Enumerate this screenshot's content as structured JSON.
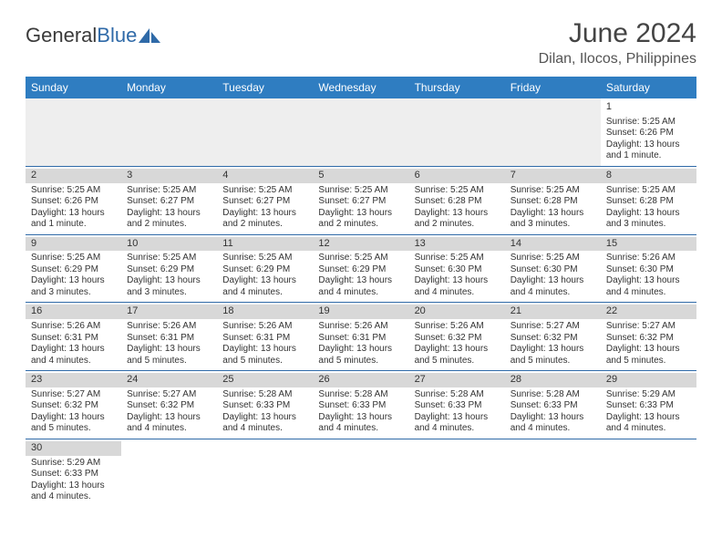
{
  "logo": {
    "text1": "General",
    "text2": "Blue"
  },
  "title": "June 2024",
  "location": "Dilan, Ilocos, Philippines",
  "colors": {
    "header_bg": "#2f7dc1",
    "header_text": "#ffffff",
    "row_divider": "#2f6aa8",
    "daynum_bg": "#d8d8d8",
    "empty_bg": "#eeeeee",
    "logo_blue": "#2f6aa8",
    "text": "#333333"
  },
  "day_headers": [
    "Sunday",
    "Monday",
    "Tuesday",
    "Wednesday",
    "Thursday",
    "Friday",
    "Saturday"
  ],
  "weeks": [
    [
      null,
      null,
      null,
      null,
      null,
      null,
      {
        "n": "1",
        "sr": "Sunrise: 5:25 AM",
        "ss": "Sunset: 6:26 PM",
        "d1": "Daylight: 13 hours",
        "d2": "and 1 minute."
      }
    ],
    [
      {
        "n": "2",
        "sr": "Sunrise: 5:25 AM",
        "ss": "Sunset: 6:26 PM",
        "d1": "Daylight: 13 hours",
        "d2": "and 1 minute."
      },
      {
        "n": "3",
        "sr": "Sunrise: 5:25 AM",
        "ss": "Sunset: 6:27 PM",
        "d1": "Daylight: 13 hours",
        "d2": "and 2 minutes."
      },
      {
        "n": "4",
        "sr": "Sunrise: 5:25 AM",
        "ss": "Sunset: 6:27 PM",
        "d1": "Daylight: 13 hours",
        "d2": "and 2 minutes."
      },
      {
        "n": "5",
        "sr": "Sunrise: 5:25 AM",
        "ss": "Sunset: 6:27 PM",
        "d1": "Daylight: 13 hours",
        "d2": "and 2 minutes."
      },
      {
        "n": "6",
        "sr": "Sunrise: 5:25 AM",
        "ss": "Sunset: 6:28 PM",
        "d1": "Daylight: 13 hours",
        "d2": "and 2 minutes."
      },
      {
        "n": "7",
        "sr": "Sunrise: 5:25 AM",
        "ss": "Sunset: 6:28 PM",
        "d1": "Daylight: 13 hours",
        "d2": "and 3 minutes."
      },
      {
        "n": "8",
        "sr": "Sunrise: 5:25 AM",
        "ss": "Sunset: 6:28 PM",
        "d1": "Daylight: 13 hours",
        "d2": "and 3 minutes."
      }
    ],
    [
      {
        "n": "9",
        "sr": "Sunrise: 5:25 AM",
        "ss": "Sunset: 6:29 PM",
        "d1": "Daylight: 13 hours",
        "d2": "and 3 minutes."
      },
      {
        "n": "10",
        "sr": "Sunrise: 5:25 AM",
        "ss": "Sunset: 6:29 PM",
        "d1": "Daylight: 13 hours",
        "d2": "and 3 minutes."
      },
      {
        "n": "11",
        "sr": "Sunrise: 5:25 AM",
        "ss": "Sunset: 6:29 PM",
        "d1": "Daylight: 13 hours",
        "d2": "and 4 minutes."
      },
      {
        "n": "12",
        "sr": "Sunrise: 5:25 AM",
        "ss": "Sunset: 6:29 PM",
        "d1": "Daylight: 13 hours",
        "d2": "and 4 minutes."
      },
      {
        "n": "13",
        "sr": "Sunrise: 5:25 AM",
        "ss": "Sunset: 6:30 PM",
        "d1": "Daylight: 13 hours",
        "d2": "and 4 minutes."
      },
      {
        "n": "14",
        "sr": "Sunrise: 5:25 AM",
        "ss": "Sunset: 6:30 PM",
        "d1": "Daylight: 13 hours",
        "d2": "and 4 minutes."
      },
      {
        "n": "15",
        "sr": "Sunrise: 5:26 AM",
        "ss": "Sunset: 6:30 PM",
        "d1": "Daylight: 13 hours",
        "d2": "and 4 minutes."
      }
    ],
    [
      {
        "n": "16",
        "sr": "Sunrise: 5:26 AM",
        "ss": "Sunset: 6:31 PM",
        "d1": "Daylight: 13 hours",
        "d2": "and 4 minutes."
      },
      {
        "n": "17",
        "sr": "Sunrise: 5:26 AM",
        "ss": "Sunset: 6:31 PM",
        "d1": "Daylight: 13 hours",
        "d2": "and 5 minutes."
      },
      {
        "n": "18",
        "sr": "Sunrise: 5:26 AM",
        "ss": "Sunset: 6:31 PM",
        "d1": "Daylight: 13 hours",
        "d2": "and 5 minutes."
      },
      {
        "n": "19",
        "sr": "Sunrise: 5:26 AM",
        "ss": "Sunset: 6:31 PM",
        "d1": "Daylight: 13 hours",
        "d2": "and 5 minutes."
      },
      {
        "n": "20",
        "sr": "Sunrise: 5:26 AM",
        "ss": "Sunset: 6:32 PM",
        "d1": "Daylight: 13 hours",
        "d2": "and 5 minutes."
      },
      {
        "n": "21",
        "sr": "Sunrise: 5:27 AM",
        "ss": "Sunset: 6:32 PM",
        "d1": "Daylight: 13 hours",
        "d2": "and 5 minutes."
      },
      {
        "n": "22",
        "sr": "Sunrise: 5:27 AM",
        "ss": "Sunset: 6:32 PM",
        "d1": "Daylight: 13 hours",
        "d2": "and 5 minutes."
      }
    ],
    [
      {
        "n": "23",
        "sr": "Sunrise: 5:27 AM",
        "ss": "Sunset: 6:32 PM",
        "d1": "Daylight: 13 hours",
        "d2": "and 5 minutes."
      },
      {
        "n": "24",
        "sr": "Sunrise: 5:27 AM",
        "ss": "Sunset: 6:32 PM",
        "d1": "Daylight: 13 hours",
        "d2": "and 4 minutes."
      },
      {
        "n": "25",
        "sr": "Sunrise: 5:28 AM",
        "ss": "Sunset: 6:33 PM",
        "d1": "Daylight: 13 hours",
        "d2": "and 4 minutes."
      },
      {
        "n": "26",
        "sr": "Sunrise: 5:28 AM",
        "ss": "Sunset: 6:33 PM",
        "d1": "Daylight: 13 hours",
        "d2": "and 4 minutes."
      },
      {
        "n": "27",
        "sr": "Sunrise: 5:28 AM",
        "ss": "Sunset: 6:33 PM",
        "d1": "Daylight: 13 hours",
        "d2": "and 4 minutes."
      },
      {
        "n": "28",
        "sr": "Sunrise: 5:28 AM",
        "ss": "Sunset: 6:33 PM",
        "d1": "Daylight: 13 hours",
        "d2": "and 4 minutes."
      },
      {
        "n": "29",
        "sr": "Sunrise: 5:29 AM",
        "ss": "Sunset: 6:33 PM",
        "d1": "Daylight: 13 hours",
        "d2": "and 4 minutes."
      }
    ],
    [
      {
        "n": "30",
        "sr": "Sunrise: 5:29 AM",
        "ss": "Sunset: 6:33 PM",
        "d1": "Daylight: 13 hours",
        "d2": "and 4 minutes."
      },
      null,
      null,
      null,
      null,
      null,
      null
    ]
  ]
}
